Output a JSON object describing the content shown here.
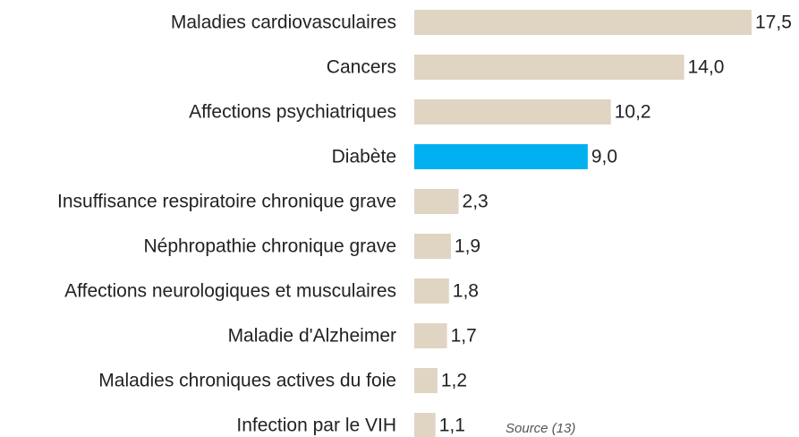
{
  "chart_data": {
    "type": "barh",
    "categories": [
      "Maladies cardiovasculaires",
      "Cancers",
      "Affections psychiatriques",
      "Diabète",
      "Insuffisance respiratoire chronique grave",
      "Néphropathie chronique grave",
      "Affections neurologiques et musculaires",
      "Maladie d'Alzheimer",
      "Maladies chroniques actives du foie",
      "Infection par le VIH"
    ],
    "values": [
      17.5,
      14.0,
      10.2,
      9.0,
      2.3,
      1.9,
      1.8,
      1.7,
      1.2,
      1.1
    ],
    "value_labels": [
      "17,5",
      "14,0",
      "10,2",
      "9,0",
      "2,3",
      "1,9",
      "1,8",
      "1,7",
      "1,2",
      "1,1"
    ],
    "colors": [
      "#e0d4c3",
      "#e0d4c3",
      "#e0d4c3",
      "#00b0f0",
      "#e0d4c3",
      "#e0d4c3",
      "#e0d4c3",
      "#e0d4c3",
      "#e0d4c3",
      "#e0d4c3"
    ],
    "annotation": "Source (13)"
  }
}
